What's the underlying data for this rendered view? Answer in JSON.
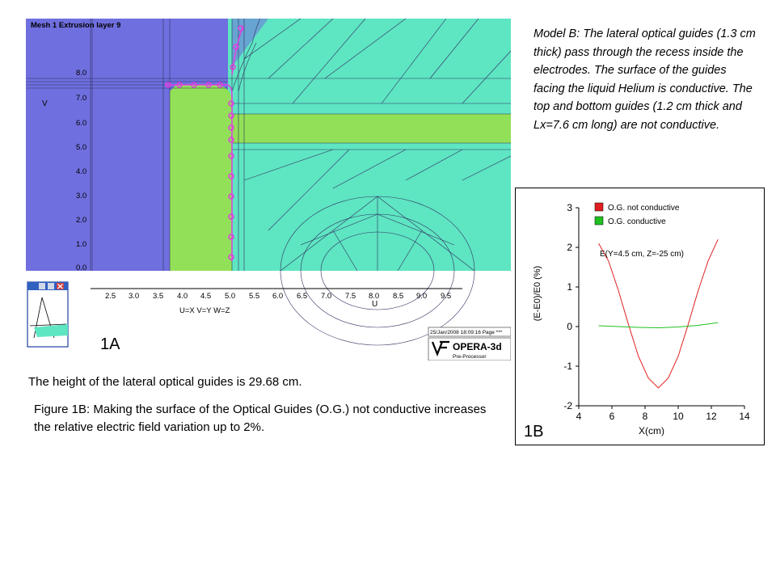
{
  "panel_1a": {
    "mesh_header": "Mesh  1  Extrusion layer  9",
    "v_axis_letter": "V",
    "y_ticks": [
      "8.0",
      "7.0",
      "6.0",
      "5.0",
      "4.0",
      "3.0",
      "2.0",
      "1.0",
      "0.0"
    ],
    "x_ticks": [
      "2.5",
      "3.0",
      "3.5",
      "4.0",
      "4.5",
      "5.0",
      "5.5",
      "6.0",
      "6.5",
      "7.0",
      "7.5",
      "8.0",
      "8.5",
      "9.0",
      "9.5"
    ],
    "u_axis_letter": "U",
    "axis_mapping": "U=X V=Y W=Z",
    "timestamp": "25/Jan/2008 18:09:16 Page ***",
    "software_name": "OPERA-3d",
    "software_module": "Pre-Processor",
    "panel_label": "1A",
    "colors": {
      "electrode": "#6F6FDF",
      "guide": "#92E058",
      "medium": "#5EE5C2",
      "marker": "#E040E0"
    }
  },
  "panel_1b": {
    "panel_label": "1B",
    "annotation": "E(Y=4.5 cm, Z=-25 cm)"
  },
  "chart_data": {
    "type": "line",
    "title": "",
    "xlabel": "X(cm)",
    "ylabel": "(E-E0)/E0 (%)",
    "xlim": [
      4,
      14
    ],
    "ylim": [
      -2,
      3
    ],
    "xticks": [
      "4",
      "6",
      "8",
      "10",
      "12",
      "14"
    ],
    "yticks": [
      "3",
      "2",
      "1",
      "0",
      "-1",
      "-2"
    ],
    "legend_position": "top-right",
    "series": [
      {
        "name": "O.G. not conductive",
        "color": "#E02020",
        "x": [
          5.2,
          5.8,
          6.4,
          7.0,
          7.6,
          8.2,
          8.8,
          9.4,
          10.0,
          10.6,
          11.2,
          11.8,
          12.4
        ],
        "y": [
          2.1,
          1.65,
          0.9,
          0.05,
          -0.75,
          -1.3,
          -1.55,
          -1.3,
          -0.75,
          0.05,
          0.9,
          1.65,
          2.2
        ]
      },
      {
        "name": "O.G. conductive",
        "color": "#20C020",
        "x": [
          5.2,
          6.4,
          7.6,
          8.8,
          10.0,
          11.2,
          12.4
        ],
        "y": [
          0.02,
          0.0,
          -0.02,
          -0.03,
          -0.01,
          0.03,
          0.1
        ]
      }
    ]
  },
  "captions": {
    "model_b": "Model B: The lateral optical guides (1.3 cm thick) pass through the recess inside the electrodes. The surface of the guides facing the liquid Helium is conductive. The top and bottom guides (1.2 cm thick and Lx=7.6 cm long) are not conductive.",
    "guide_height": "The height of the lateral optical guides is 29.68 cm.",
    "figure_1b": "Figure 1B: Making the surface of the Optical Guides (O.G.) not conductive increases the relative electric field variation up to 2%."
  }
}
